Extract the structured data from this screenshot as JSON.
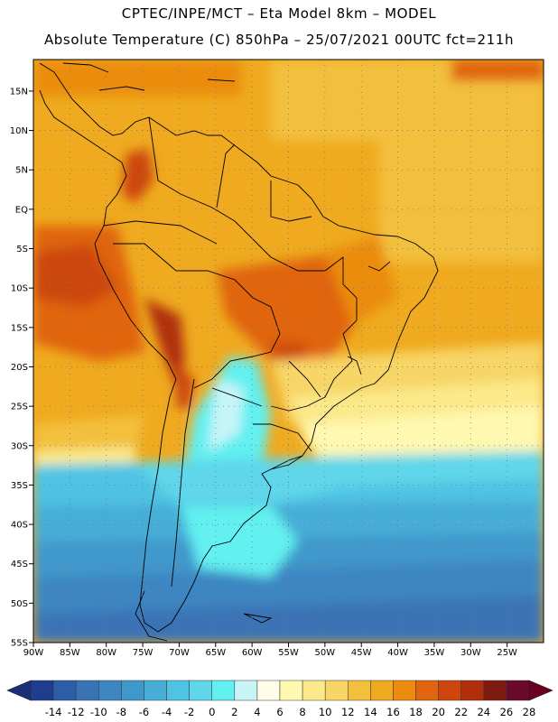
{
  "header": {
    "line1": "CPTEC/INPE/MCT –  Eta Model 8km – MODEL",
    "line2": "Absolute Temperature (C) 850hPa – 25/07/2021 00UTC fct=211h"
  },
  "axes": {
    "lat_labels": [
      "15N",
      "10N",
      "5N",
      "EQ",
      "5S",
      "10S",
      "15S",
      "20S",
      "25S",
      "30S",
      "35S",
      "40S",
      "45S",
      "50S",
      "55S"
    ],
    "lon_labels": [
      "90W",
      "85W",
      "80W",
      "75W",
      "70W",
      "65W",
      "60W",
      "55W",
      "50W",
      "45W",
      "40W",
      "35W",
      "30W",
      "25W"
    ]
  },
  "colorbar": {
    "labels": [
      "-14",
      "-12",
      "-10",
      "-8",
      "-6",
      "-4",
      "-2",
      "0",
      "2",
      "4",
      "6",
      "8",
      "10",
      "12",
      "14",
      "16",
      "18",
      "20",
      "22",
      "24",
      "26",
      "28"
    ],
    "colors": [
      "#1f3d8f",
      "#2b5ea7",
      "#3a73b5",
      "#3d86c2",
      "#3f98cc",
      "#47aed7",
      "#4fc3e3",
      "#5fd6ea",
      "#62f0f0",
      "#c8f4f8",
      "#fffde8",
      "#fff8b0",
      "#fbe98a",
      "#f7d566",
      "#f3c03e",
      "#efaa1f",
      "#eb8c10",
      "#e0650e",
      "#cc460d",
      "#b02e0c",
      "#7e1a10",
      "#6b0a2a"
    ],
    "low_arrow_color": "#1a2e7a",
    "high_arrow_color": "#6b0020"
  }
}
